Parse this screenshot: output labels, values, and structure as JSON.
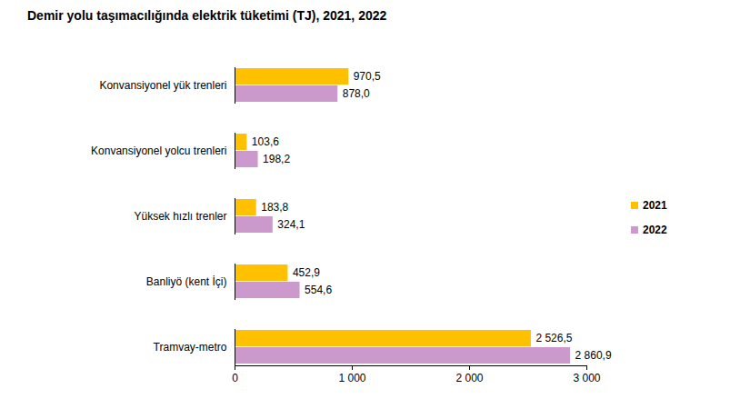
{
  "chart_data": {
    "type": "bar",
    "title": "Demir yolu taşımacılığında elektrik tüketimi (TJ), 2021, 2022",
    "orientation": "horizontal",
    "categories": [
      "Konvansiyonel yük trenleri",
      "Konvansiyonel yolcu trenleri",
      "Yüksek hızlı trenler",
      "Banliyö (kent İçi)",
      "Tramvay-metro"
    ],
    "series": [
      {
        "name": "2021",
        "color": "#FFC000",
        "values": [
          970.5,
          103.6,
          183.8,
          452.9,
          2526.5
        ],
        "value_labels": [
          "970,5",
          "103,6",
          "183,8",
          "452,9",
          "2 526,5"
        ]
      },
      {
        "name": "2022",
        "color": "#CC99CC",
        "values": [
          878.0,
          198.2,
          324.1,
          554.6,
          2860.9
        ],
        "value_labels": [
          "878,0",
          "198,2",
          "324,1",
          "554,6",
          "2 860,9"
        ]
      }
    ],
    "xlim": [
      0,
      3000
    ],
    "xticks": [
      0,
      {
        "value": 1000,
        "label": "1 000"
      },
      {
        "value": 2000,
        "label": "2 000"
      },
      {
        "value": 3000,
        "label": "3 000"
      }
    ],
    "grid": false,
    "legend": "right",
    "data_labels": true
  }
}
